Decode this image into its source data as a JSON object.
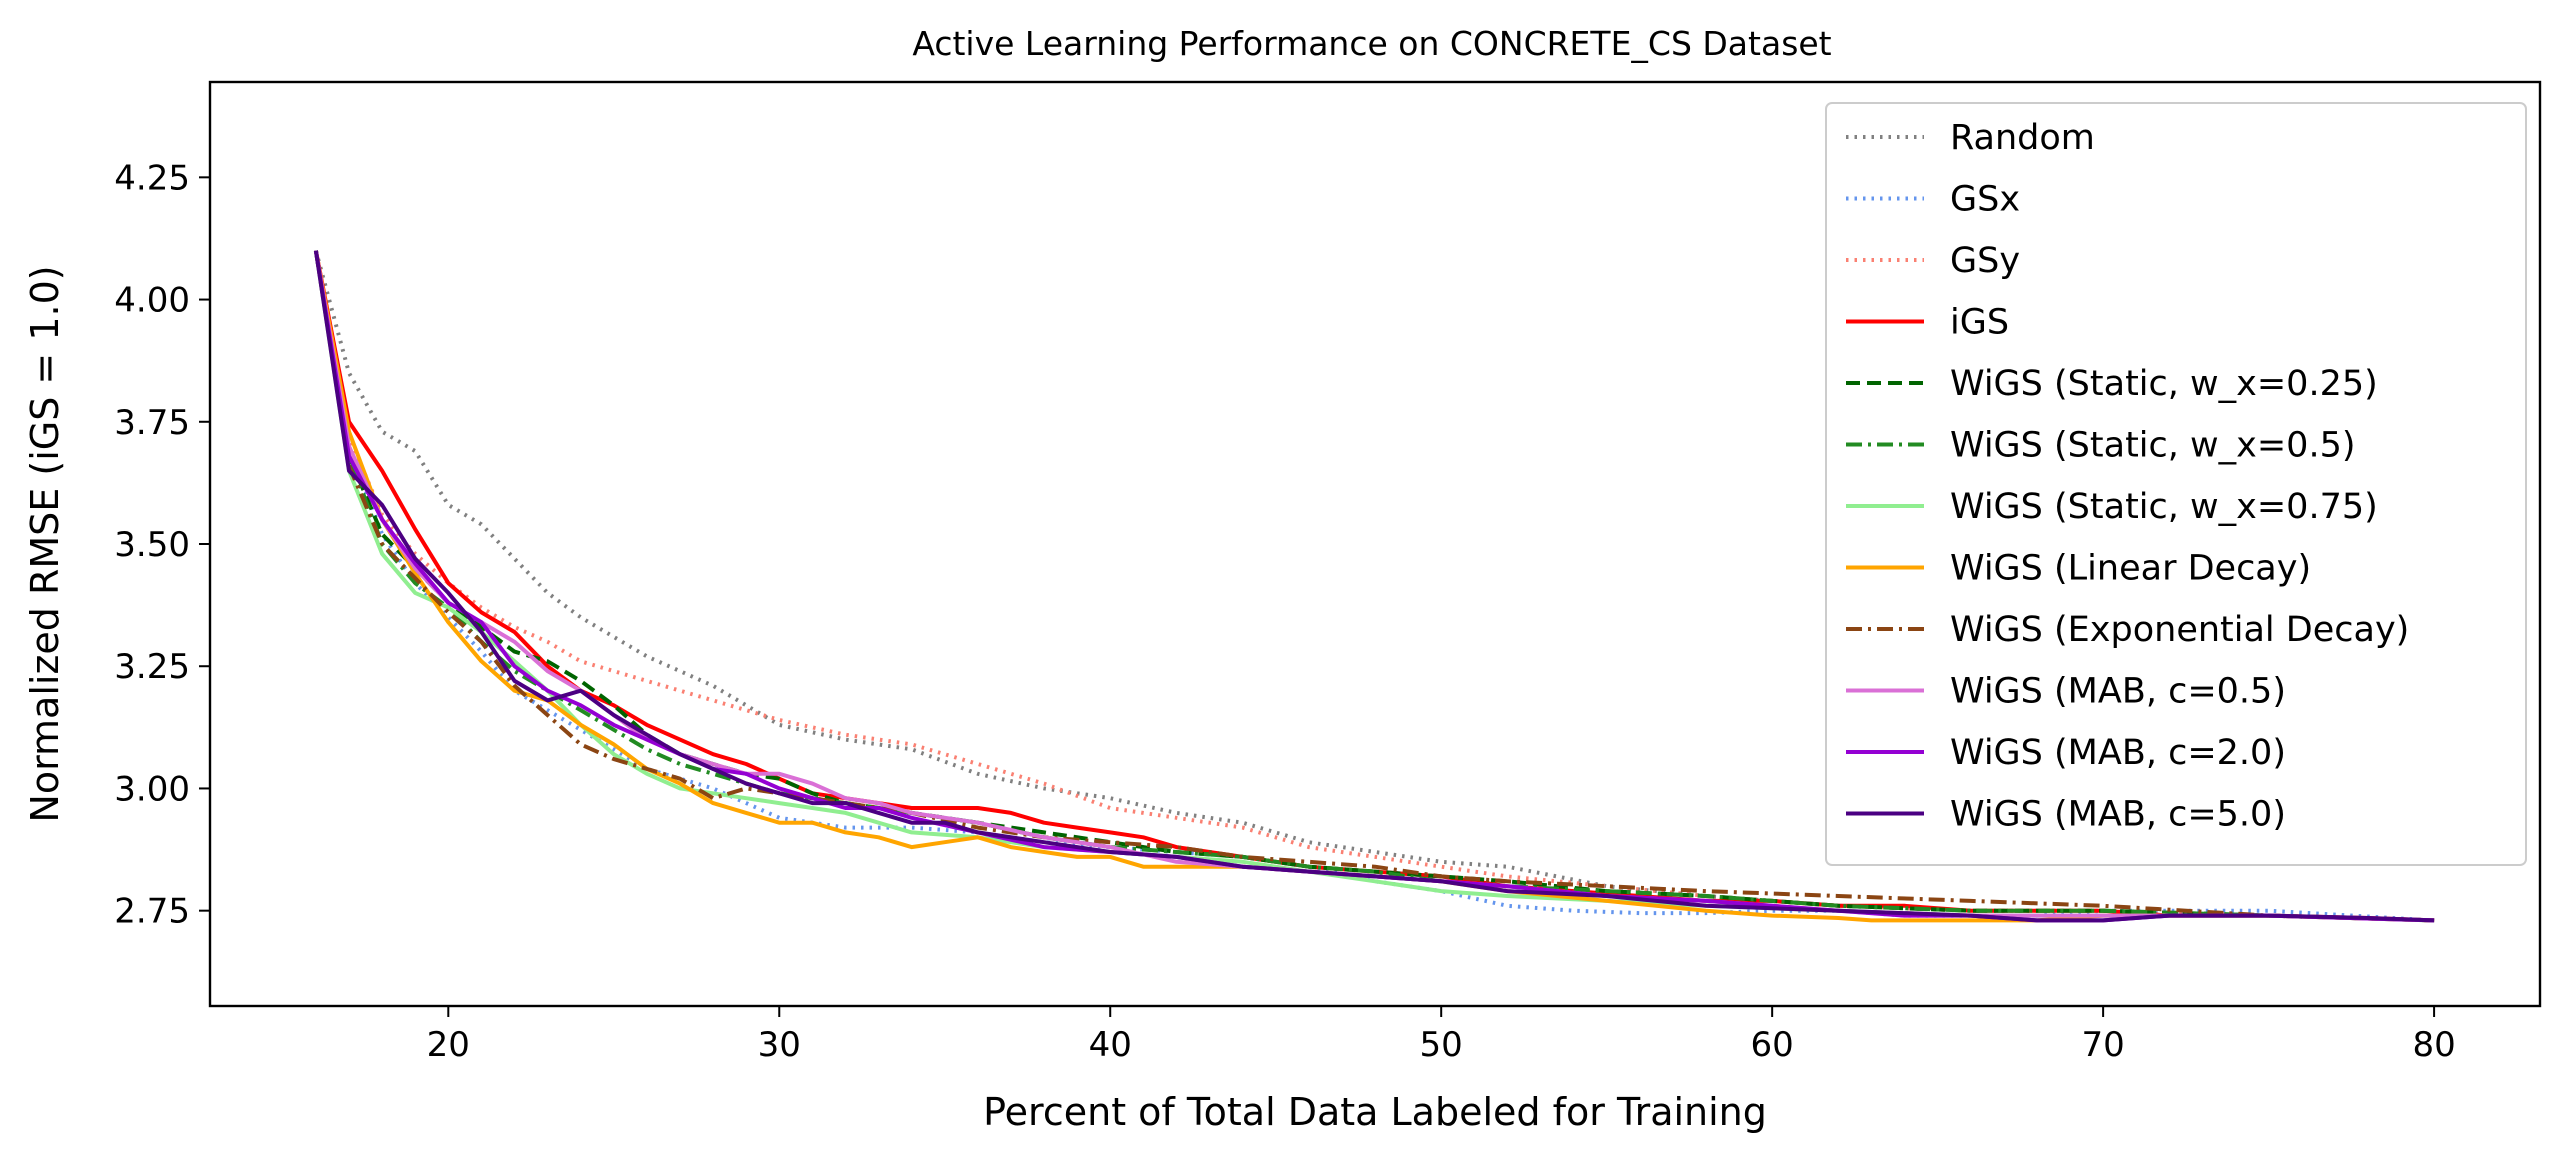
{
  "chart_data": {
    "type": "line",
    "title": "Active Learning Performance on CONCRETE_CS Dataset",
    "xlabel": "Percent of Total Data Labeled for Training",
    "ylabel": "Normalized RMSE (iGS = 1.0)",
    "xlim": [
      12.8,
      83.2
    ],
    "ylim": [
      2.555,
      4.445
    ],
    "xticks": [
      20,
      30,
      40,
      50,
      60,
      70,
      80
    ],
    "xtick_labels": [
      "20",
      "30",
      "40",
      "50",
      "60",
      "70",
      "80"
    ],
    "yticks": [
      2.75,
      3.0,
      3.25,
      3.5,
      3.75,
      4.0,
      4.25
    ],
    "ytick_labels": [
      "2.75",
      "3.00",
      "3.25",
      "3.50",
      "3.75",
      "4.00",
      "4.25"
    ],
    "grid": false,
    "legend_position": "upper right",
    "series": [
      {
        "name": "Random",
        "color": "#808080",
        "dash": "dotted",
        "x": [
          16,
          17,
          18,
          19,
          20,
          21,
          22,
          23,
          24,
          25,
          26,
          27,
          28,
          29,
          30,
          32,
          34,
          36,
          38,
          40,
          42,
          44,
          46,
          48,
          50,
          52,
          55,
          58,
          62,
          66,
          70,
          75,
          80
        ],
        "y": [
          4.1,
          3.85,
          3.73,
          3.69,
          3.58,
          3.54,
          3.47,
          3.4,
          3.35,
          3.31,
          3.27,
          3.24,
          3.21,
          3.17,
          3.13,
          3.1,
          3.08,
          3.03,
          3.0,
          2.98,
          2.95,
          2.93,
          2.89,
          2.87,
          2.85,
          2.84,
          2.8,
          2.78,
          2.76,
          2.75,
          2.75,
          2.74,
          2.73
        ]
      },
      {
        "name": "GSx",
        "color": "#6495ed",
        "dash": "dotted",
        "x": [
          16,
          17,
          18,
          19,
          20,
          21,
          22,
          23,
          24,
          25,
          26,
          28,
          30,
          32,
          34,
          36,
          38,
          40,
          42,
          44,
          46,
          48,
          50,
          52,
          54,
          56,
          58,
          60,
          62,
          64,
          66,
          68,
          70,
          72,
          75,
          80
        ],
        "y": [
          4.1,
          3.7,
          3.52,
          3.42,
          3.35,
          3.28,
          3.2,
          3.16,
          3.12,
          3.08,
          3.04,
          3.0,
          2.94,
          2.92,
          2.92,
          2.91,
          2.89,
          2.88,
          2.87,
          2.86,
          2.84,
          2.81,
          2.79,
          2.76,
          2.75,
          2.745,
          2.745,
          2.75,
          2.75,
          2.74,
          2.74,
          2.74,
          2.75,
          2.75,
          2.75,
          2.73
        ]
      },
      {
        "name": "GSy",
        "color": "#fa8072",
        "dash": "dotted",
        "x": [
          16,
          17,
          18,
          19,
          20,
          21,
          22,
          23,
          24,
          25,
          26,
          28,
          30,
          32,
          34,
          36,
          38,
          40,
          42,
          44,
          46,
          48,
          50,
          52,
          55,
          58,
          62,
          66,
          70,
          75,
          80
        ],
        "y": [
          4.1,
          3.72,
          3.56,
          3.48,
          3.42,
          3.37,
          3.33,
          3.3,
          3.26,
          3.24,
          3.22,
          3.18,
          3.14,
          3.11,
          3.09,
          3.05,
          3.01,
          2.96,
          2.94,
          2.92,
          2.88,
          2.86,
          2.84,
          2.82,
          2.8,
          2.78,
          2.76,
          2.75,
          2.75,
          2.74,
          2.73
        ]
      },
      {
        "name": "iGS",
        "color": "#ff0000",
        "dash": "solid",
        "x": [
          16,
          17,
          18,
          19,
          20,
          21,
          22,
          23,
          24,
          25,
          26,
          27,
          28,
          29,
          30,
          31,
          32,
          33,
          34,
          35,
          36,
          37,
          38,
          39,
          40,
          41,
          42,
          43,
          44,
          46,
          48,
          50,
          52,
          54,
          56,
          58,
          60,
          62,
          64,
          66,
          68,
          70,
          72,
          75,
          78,
          80
        ],
        "y": [
          4.1,
          3.75,
          3.65,
          3.53,
          3.42,
          3.36,
          3.32,
          3.25,
          3.2,
          3.17,
          3.13,
          3.1,
          3.07,
          3.05,
          3.02,
          2.99,
          2.98,
          2.97,
          2.96,
          2.96,
          2.96,
          2.95,
          2.93,
          2.92,
          2.91,
          2.9,
          2.88,
          2.87,
          2.86,
          2.84,
          2.83,
          2.82,
          2.8,
          2.79,
          2.78,
          2.77,
          2.77,
          2.76,
          2.76,
          2.75,
          2.75,
          2.75,
          2.74,
          2.74,
          2.735,
          2.73
        ]
      },
      {
        "name": "WiGS (Static, w_x=0.25)",
        "color": "#006400",
        "dash": "dashed",
        "x": [
          16,
          17,
          18,
          19,
          20,
          21,
          22,
          23,
          24,
          25,
          26,
          27,
          28,
          29,
          30,
          31,
          32,
          33,
          34,
          36,
          38,
          40,
          42,
          44,
          46,
          48,
          50,
          52,
          55,
          58,
          62,
          66,
          70,
          75,
          80
        ],
        "y": [
          4.1,
          3.68,
          3.52,
          3.45,
          3.38,
          3.33,
          3.28,
          3.26,
          3.22,
          3.17,
          3.11,
          3.07,
          3.05,
          3.03,
          3.02,
          2.99,
          2.97,
          2.96,
          2.95,
          2.93,
          2.91,
          2.89,
          2.87,
          2.86,
          2.84,
          2.83,
          2.82,
          2.81,
          2.79,
          2.78,
          2.76,
          2.75,
          2.75,
          2.74,
          2.73
        ]
      },
      {
        "name": "WiGS (Static, w_x=0.5)",
        "color": "#228b22",
        "dash": "dashdot",
        "x": [
          16,
          17,
          18,
          19,
          20,
          21,
          22,
          23,
          24,
          25,
          26,
          27,
          28,
          29,
          30,
          32,
          34,
          36,
          38,
          40,
          42,
          44,
          46,
          48,
          50,
          52,
          55,
          58,
          62,
          66,
          70,
          75,
          80
        ],
        "y": [
          4.1,
          3.68,
          3.5,
          3.42,
          3.37,
          3.3,
          3.24,
          3.2,
          3.16,
          3.12,
          3.08,
          3.05,
          3.03,
          3.01,
          2.99,
          2.97,
          2.95,
          2.93,
          2.9,
          2.88,
          2.87,
          2.86,
          2.84,
          2.83,
          2.81,
          2.8,
          2.79,
          2.78,
          2.76,
          2.75,
          2.75,
          2.74,
          2.73
        ]
      },
      {
        "name": "WiGS (Static, w_x=0.75)",
        "color": "#90ee90",
        "dash": "solid",
        "x": [
          16,
          17,
          18,
          19,
          20,
          21,
          22,
          23,
          24,
          25,
          26,
          27,
          28,
          29,
          30,
          32,
          34,
          36,
          38,
          40,
          42,
          44,
          46,
          48,
          50,
          52,
          55,
          58,
          62,
          66,
          70,
          75,
          80
        ],
        "y": [
          4.1,
          3.65,
          3.48,
          3.4,
          3.37,
          3.32,
          3.26,
          3.2,
          3.13,
          3.07,
          3.03,
          3.0,
          2.99,
          2.98,
          2.97,
          2.95,
          2.91,
          2.9,
          2.88,
          2.87,
          2.86,
          2.85,
          2.83,
          2.81,
          2.79,
          2.78,
          2.77,
          2.76,
          2.75,
          2.74,
          2.74,
          2.74,
          2.73
        ]
      },
      {
        "name": "WiGS (Linear Decay)",
        "color": "#ffa500",
        "dash": "solid",
        "x": [
          16,
          17,
          18,
          19,
          20,
          21,
          22,
          23,
          24,
          25,
          26,
          27,
          28,
          29,
          30,
          31,
          32,
          33,
          34,
          35,
          36,
          37,
          38,
          39,
          40,
          41,
          42,
          44,
          46,
          48,
          50,
          52,
          55,
          58,
          60,
          62,
          63,
          64,
          66,
          68,
          70,
          72,
          75,
          80
        ],
        "y": [
          4.1,
          3.73,
          3.55,
          3.44,
          3.34,
          3.26,
          3.2,
          3.18,
          3.13,
          3.09,
          3.04,
          3.01,
          2.97,
          2.95,
          2.93,
          2.93,
          2.91,
          2.9,
          2.88,
          2.89,
          2.9,
          2.88,
          2.87,
          2.86,
          2.86,
          2.84,
          2.84,
          2.84,
          2.83,
          2.82,
          2.81,
          2.79,
          2.77,
          2.75,
          2.74,
          2.735,
          2.73,
          2.73,
          2.73,
          2.73,
          2.74,
          2.74,
          2.74,
          2.73
        ]
      },
      {
        "name": "WiGS (Exponential Decay)",
        "color": "#8b4513",
        "dash": "dashdot",
        "x": [
          16,
          17,
          18,
          19,
          20,
          21,
          22,
          23,
          24,
          25,
          26,
          27,
          28,
          29,
          30,
          32,
          34,
          36,
          38,
          40,
          42,
          44,
          46,
          48,
          50,
          52,
          55,
          58,
          62,
          66,
          70,
          75,
          80
        ],
        "y": [
          4.1,
          3.66,
          3.5,
          3.43,
          3.36,
          3.3,
          3.21,
          3.15,
          3.09,
          3.06,
          3.04,
          3.02,
          2.98,
          3.0,
          2.99,
          2.97,
          2.95,
          2.92,
          2.9,
          2.89,
          2.88,
          2.86,
          2.85,
          2.84,
          2.82,
          2.81,
          2.8,
          2.79,
          2.78,
          2.77,
          2.76,
          2.74,
          2.73
        ]
      },
      {
        "name": "WiGS (MAB, c=0.5)",
        "color": "#da70d6",
        "dash": "solid",
        "x": [
          16,
          17,
          18,
          19,
          20,
          21,
          22,
          23,
          24,
          25,
          26,
          27,
          28,
          29,
          30,
          31,
          32,
          33,
          34,
          36,
          38,
          40,
          42,
          44,
          46,
          48,
          50,
          52,
          55,
          58,
          62,
          66,
          70,
          75,
          80
        ],
        "y": [
          4.1,
          3.7,
          3.55,
          3.45,
          3.38,
          3.34,
          3.3,
          3.24,
          3.2,
          3.15,
          3.1,
          3.07,
          3.05,
          3.03,
          3.03,
          3.01,
          2.98,
          2.97,
          2.95,
          2.93,
          2.9,
          2.88,
          2.85,
          2.84,
          2.83,
          2.82,
          2.81,
          2.8,
          2.78,
          2.77,
          2.75,
          2.74,
          2.74,
          2.74,
          2.73
        ]
      },
      {
        "name": "WiGS (MAB, c=2.0)",
        "color": "#9400d3",
        "dash": "solid",
        "x": [
          16,
          17,
          18,
          19,
          20,
          21,
          22,
          23,
          24,
          25,
          26,
          27,
          28,
          29,
          30,
          31,
          32,
          33,
          34,
          36,
          38,
          40,
          42,
          44,
          46,
          48,
          50,
          52,
          55,
          58,
          62,
          64,
          66,
          68,
          70,
          72,
          75,
          80
        ],
        "y": [
          4.1,
          3.68,
          3.55,
          3.46,
          3.38,
          3.34,
          3.25,
          3.2,
          3.17,
          3.13,
          3.1,
          3.07,
          3.04,
          3.03,
          3.0,
          2.98,
          2.96,
          2.96,
          2.94,
          2.91,
          2.88,
          2.87,
          2.86,
          2.84,
          2.83,
          2.82,
          2.81,
          2.8,
          2.78,
          2.77,
          2.75,
          2.74,
          2.74,
          2.73,
          2.73,
          2.74,
          2.74,
          2.73
        ]
      },
      {
        "name": "WiGS (MAB, c=5.0)",
        "color": "#4b0082",
        "dash": "solid",
        "x": [
          16,
          17,
          18,
          19,
          20,
          21,
          22,
          23,
          24,
          25,
          26,
          27,
          28,
          29,
          30,
          31,
          32,
          33,
          34,
          35,
          36,
          38,
          40,
          42,
          44,
          46,
          48,
          50,
          52,
          55,
          58,
          62,
          66,
          68,
          70,
          72,
          75,
          78,
          80
        ],
        "y": [
          4.1,
          3.65,
          3.58,
          3.47,
          3.4,
          3.32,
          3.22,
          3.18,
          3.2,
          3.15,
          3.11,
          3.07,
          3.04,
          3.01,
          2.99,
          2.97,
          2.97,
          2.95,
          2.93,
          2.93,
          2.91,
          2.89,
          2.87,
          2.86,
          2.84,
          2.83,
          2.82,
          2.81,
          2.79,
          2.78,
          2.76,
          2.75,
          2.74,
          2.73,
          2.73,
          2.74,
          2.74,
          2.735,
          2.73
        ]
      }
    ]
  }
}
